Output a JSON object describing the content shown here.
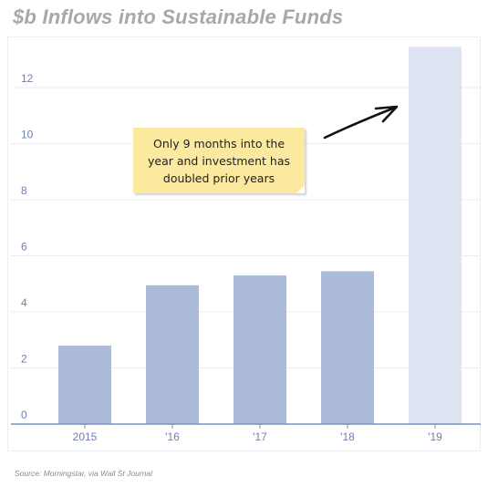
{
  "title": "$b Inflows into Sustainable Funds",
  "source": "Source: Morningstar, via Wall St Journal",
  "annotation": "Only 9 months into the year and investment has doubled prior years",
  "colors": {
    "bar": "#adbbdb",
    "bar_highlight": "#dde3f0",
    "axis": "#7f8fc0",
    "tick_text": "#6f7fb0",
    "grid": "#e8ecf4"
  },
  "chart_data": {
    "type": "bar",
    "categories": [
      "2015",
      "'16",
      "'17",
      "'18",
      "'19"
    ],
    "values": [
      2.8,
      4.95,
      5.3,
      5.45,
      13.45
    ],
    "ylim": [
      0,
      14
    ],
    "yticks": [
      0,
      2,
      4,
      6,
      8,
      10,
      12
    ],
    "grid": true,
    "legend": "none"
  }
}
